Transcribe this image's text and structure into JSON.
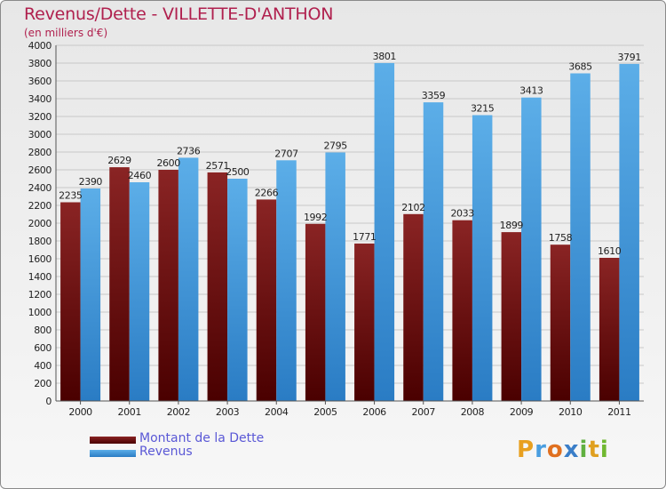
{
  "chart_data": {
    "type": "bar",
    "title": "Revenus/Dette - VILLETTE-D'ANTHON",
    "subtitle": "(en milliers d'€)",
    "categories": [
      "2000",
      "2001",
      "2002",
      "2003",
      "2004",
      "2005",
      "2006",
      "2007",
      "2008",
      "2009",
      "2010",
      "2011"
    ],
    "series": [
      {
        "name": "Montant de la Dette",
        "color": "#7a1010",
        "values": [
          2235,
          2629,
          2600,
          2571,
          2266,
          1992,
          1771,
          2102,
          2033,
          1899,
          1758,
          1610
        ]
      },
      {
        "name": "Revenus",
        "color": "#4a9ee0",
        "values": [
          2390,
          2460,
          2736,
          2500,
          2707,
          2795,
          3801,
          3359,
          3215,
          3413,
          3685,
          3791
        ]
      }
    ],
    "value_labels": {
      "debt": [
        "2235",
        "2629",
        "2600",
        "2571",
        "2266",
        "1992",
        "1771",
        "2102",
        "2033",
        "1899",
        "1758",
        "1610"
      ],
      "revenue": [
        "2390",
        "2460",
        "2736",
        "2500",
        "2707",
        "2795",
        "3801",
        "3359",
        "3215",
        "3413",
        "3685",
        "3791"
      ]
    },
    "ylim": [
      0,
      4000
    ],
    "ytick_step": 200,
    "grid": true,
    "legend_placement": "bottom-left"
  },
  "logo": {
    "letters": [
      "P",
      "r",
      "o",
      "x",
      "i",
      "t",
      "i"
    ],
    "colors": [
      "#e8a020",
      "#4a9ee0",
      "#e07020",
      "#3a7ec8",
      "#60b040",
      "#e0a020",
      "#70b830"
    ]
  }
}
